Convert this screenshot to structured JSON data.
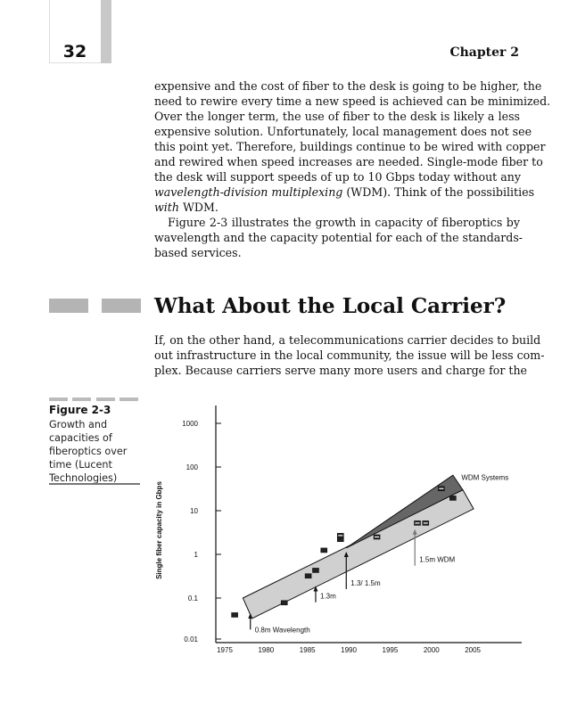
{
  "header": {
    "page_number": "32",
    "chapter": "Chapter 2"
  },
  "body": {
    "para1": [
      [
        {
          "t": "expensive and the cost of fiber to the desk is going to be higher, the"
        }
      ],
      [
        {
          "t": "need to rewire every time a new speed is achieved can be minimized."
        }
      ],
      [
        {
          "t": "Over the longer term, the use of fiber to the desk is likely a less"
        }
      ],
      [
        {
          "t": "expensive solution. Unfortunately, local management does not see"
        }
      ],
      [
        {
          "t": "this point yet. Therefore, buildings continue to be wired with copper"
        }
      ],
      [
        {
          "t": "and rewired when speed increases are needed. Single-mode fiber to"
        }
      ],
      [
        {
          "t": "the desk will support speeds of up to 10 Gbps today without any"
        }
      ],
      [
        {
          "t": "wavelength-division multiplexing",
          "i": true
        },
        {
          "t": " (WDM). Think of the possibilities"
        }
      ],
      [
        {
          "t": "with",
          "i": true
        },
        {
          "t": " WDM."
        }
      ]
    ],
    "para2": [
      [
        {
          "t": "Figure 2-3 illustrates the growth in capacity of fiberoptics by"
        }
      ],
      [
        {
          "t": "wavelength and the capacity potential for each of the standards-"
        }
      ],
      [
        {
          "t": "based services."
        }
      ]
    ],
    "heading": "What About the Local Carrier?",
    "para3": [
      [
        {
          "t": "If, on the other hand, a telecommunications carrier decides to build"
        }
      ],
      [
        {
          "t": "out infrastructure in the local community, the issue will be less com-"
        }
      ],
      [
        {
          "t": "plex. Because carriers serve many more users and charge for the"
        }
      ]
    ]
  },
  "figure": {
    "label": "Figure 2-3",
    "caption_lines": [
      "Growth and",
      "capacities of",
      "fiberoptics over",
      "time (Lucent",
      "Technologies)"
    ]
  },
  "chart_data": {
    "type": "scatter",
    "ylabel": "Single fiber capacity in Gbps",
    "xlabel": "",
    "yscale": "log",
    "ylim": [
      0.01,
      1000
    ],
    "xlim": [
      1975,
      2005
    ],
    "x_ticks": [
      "1975",
      "1980",
      "1985",
      "1990",
      "1995",
      "2000",
      "2005"
    ],
    "y_ticks": [
      "0.01",
      "0.1",
      "1",
      "10",
      "100",
      "1000"
    ],
    "grid": false,
    "points": [
      {
        "x": 1976.2,
        "y": 0.041,
        "style": "filled"
      },
      {
        "x": 1982.2,
        "y": 0.078,
        "style": "filled"
      },
      {
        "x": 1985.1,
        "y": 0.32,
        "style": "filled"
      },
      {
        "x": 1986.0,
        "y": 0.43,
        "style": "filled"
      },
      {
        "x": 1987.0,
        "y": 1.24,
        "style": "filled"
      },
      {
        "x": 1989.0,
        "y": 2.2,
        "style": "filled"
      },
      {
        "x": 1989.0,
        "y": 2.7,
        "style": "open"
      },
      {
        "x": 1993.4,
        "y": 2.5,
        "style": "open"
      },
      {
        "x": 1998.3,
        "y": 5.2,
        "style": "open"
      },
      {
        "x": 1999.3,
        "y": 5.2,
        "style": "open"
      },
      {
        "x": 2001.2,
        "y": 32,
        "style": "open"
      },
      {
        "x": 2002.6,
        "y": 19.4,
        "style": "filled"
      }
    ],
    "bands": [
      {
        "name": "WDM Systems",
        "color": "#666666",
        "polygon": [
          [
            1989.7,
            1.4
          ],
          [
            2002.6,
            65
          ],
          [
            2003.8,
            30
          ]
        ]
      },
      {
        "color": "#d0d0d0",
        "polygon": [
          [
            1977.2,
            0.1
          ],
          [
            2003.8,
            30
          ],
          [
            2005.1,
            11
          ],
          [
            1978.3,
            0.034
          ]
        ]
      }
    ],
    "annotations": [
      {
        "text": "0.8m Wavelength",
        "x": 1978.1,
        "y_from": 0.019,
        "y_to": 0.043,
        "color": "#111111"
      },
      {
        "text": "1.3m",
        "x": 1986.0,
        "y_from": 0.08,
        "y_to": 0.18,
        "color": "#111111"
      },
      {
        "text": "1.3/ 1.5m",
        "x": 1989.7,
        "y_from": 0.16,
        "y_to": 1.1,
        "color": "#111111"
      },
      {
        "text": "1.5m WDM",
        "x": 1998.0,
        "y_from": 0.55,
        "y_to": 3.6,
        "color": "#777777"
      },
      {
        "text": "WDM Systems",
        "x": 2003.3,
        "y_label": 55,
        "color": "#111111"
      }
    ]
  }
}
